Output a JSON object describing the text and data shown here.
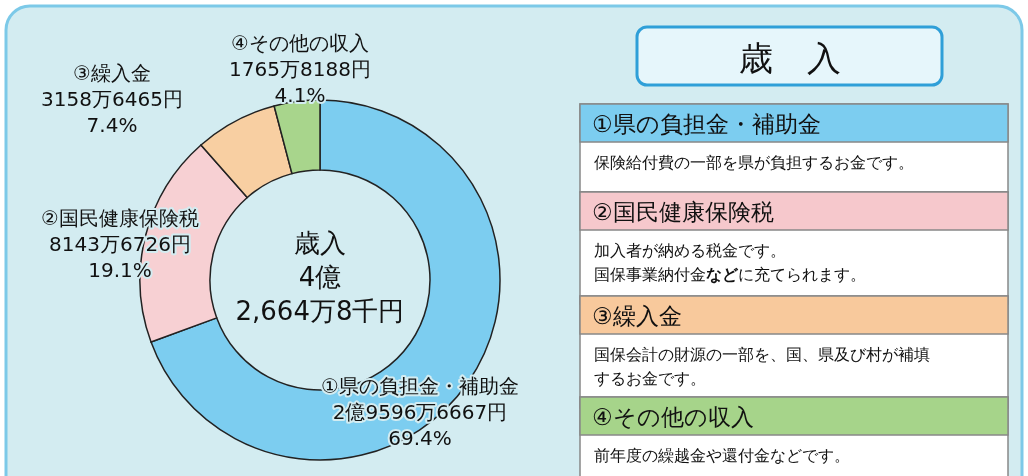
{
  "chart_data": [
    {
      "type": "donut",
      "categories": [
        "①県の負担金・補助金",
        "②国民健康保険税",
        "③繰入金",
        "④その他の収入"
      ],
      "values": [
        69.4,
        19.1,
        7.4,
        4.1
      ],
      "colors": [
        "#7ccdf0",
        "#f7d0d3",
        "#f8cfa2",
        "#a8d58c"
      ],
      "value_labels": [
        "2億9596万6667円\n69.4%",
        "8143万6726円\n19.1%",
        "3158万6465円\n7.4%",
        "1765万8188円\n4.1%"
      ],
      "annotations": [
        "歳入\n4億\n2,664万8千円"
      ]
    },
    {
      "type": "other",
      "title": "歳　入",
      "categories": [
        "①県の負担金・補助金",
        "②国民健康保険税",
        "③繰入金",
        "④その他の収入"
      ],
      "colors": [
        "#7ccdf0",
        "#f6c8cc",
        "#f8c99c",
        "#a6d48a"
      ],
      "annotations": [
        "保険給付費の一部を県が負担するお金です。",
        "加入者が納める税金です。国保事業納付金**など**に充てられます。",
        "国保会計の財源の一部を、国、県及び村が補填するお金です。",
        "前年度の繰越金や還付金などです。"
      ]
    }
  ]
}
